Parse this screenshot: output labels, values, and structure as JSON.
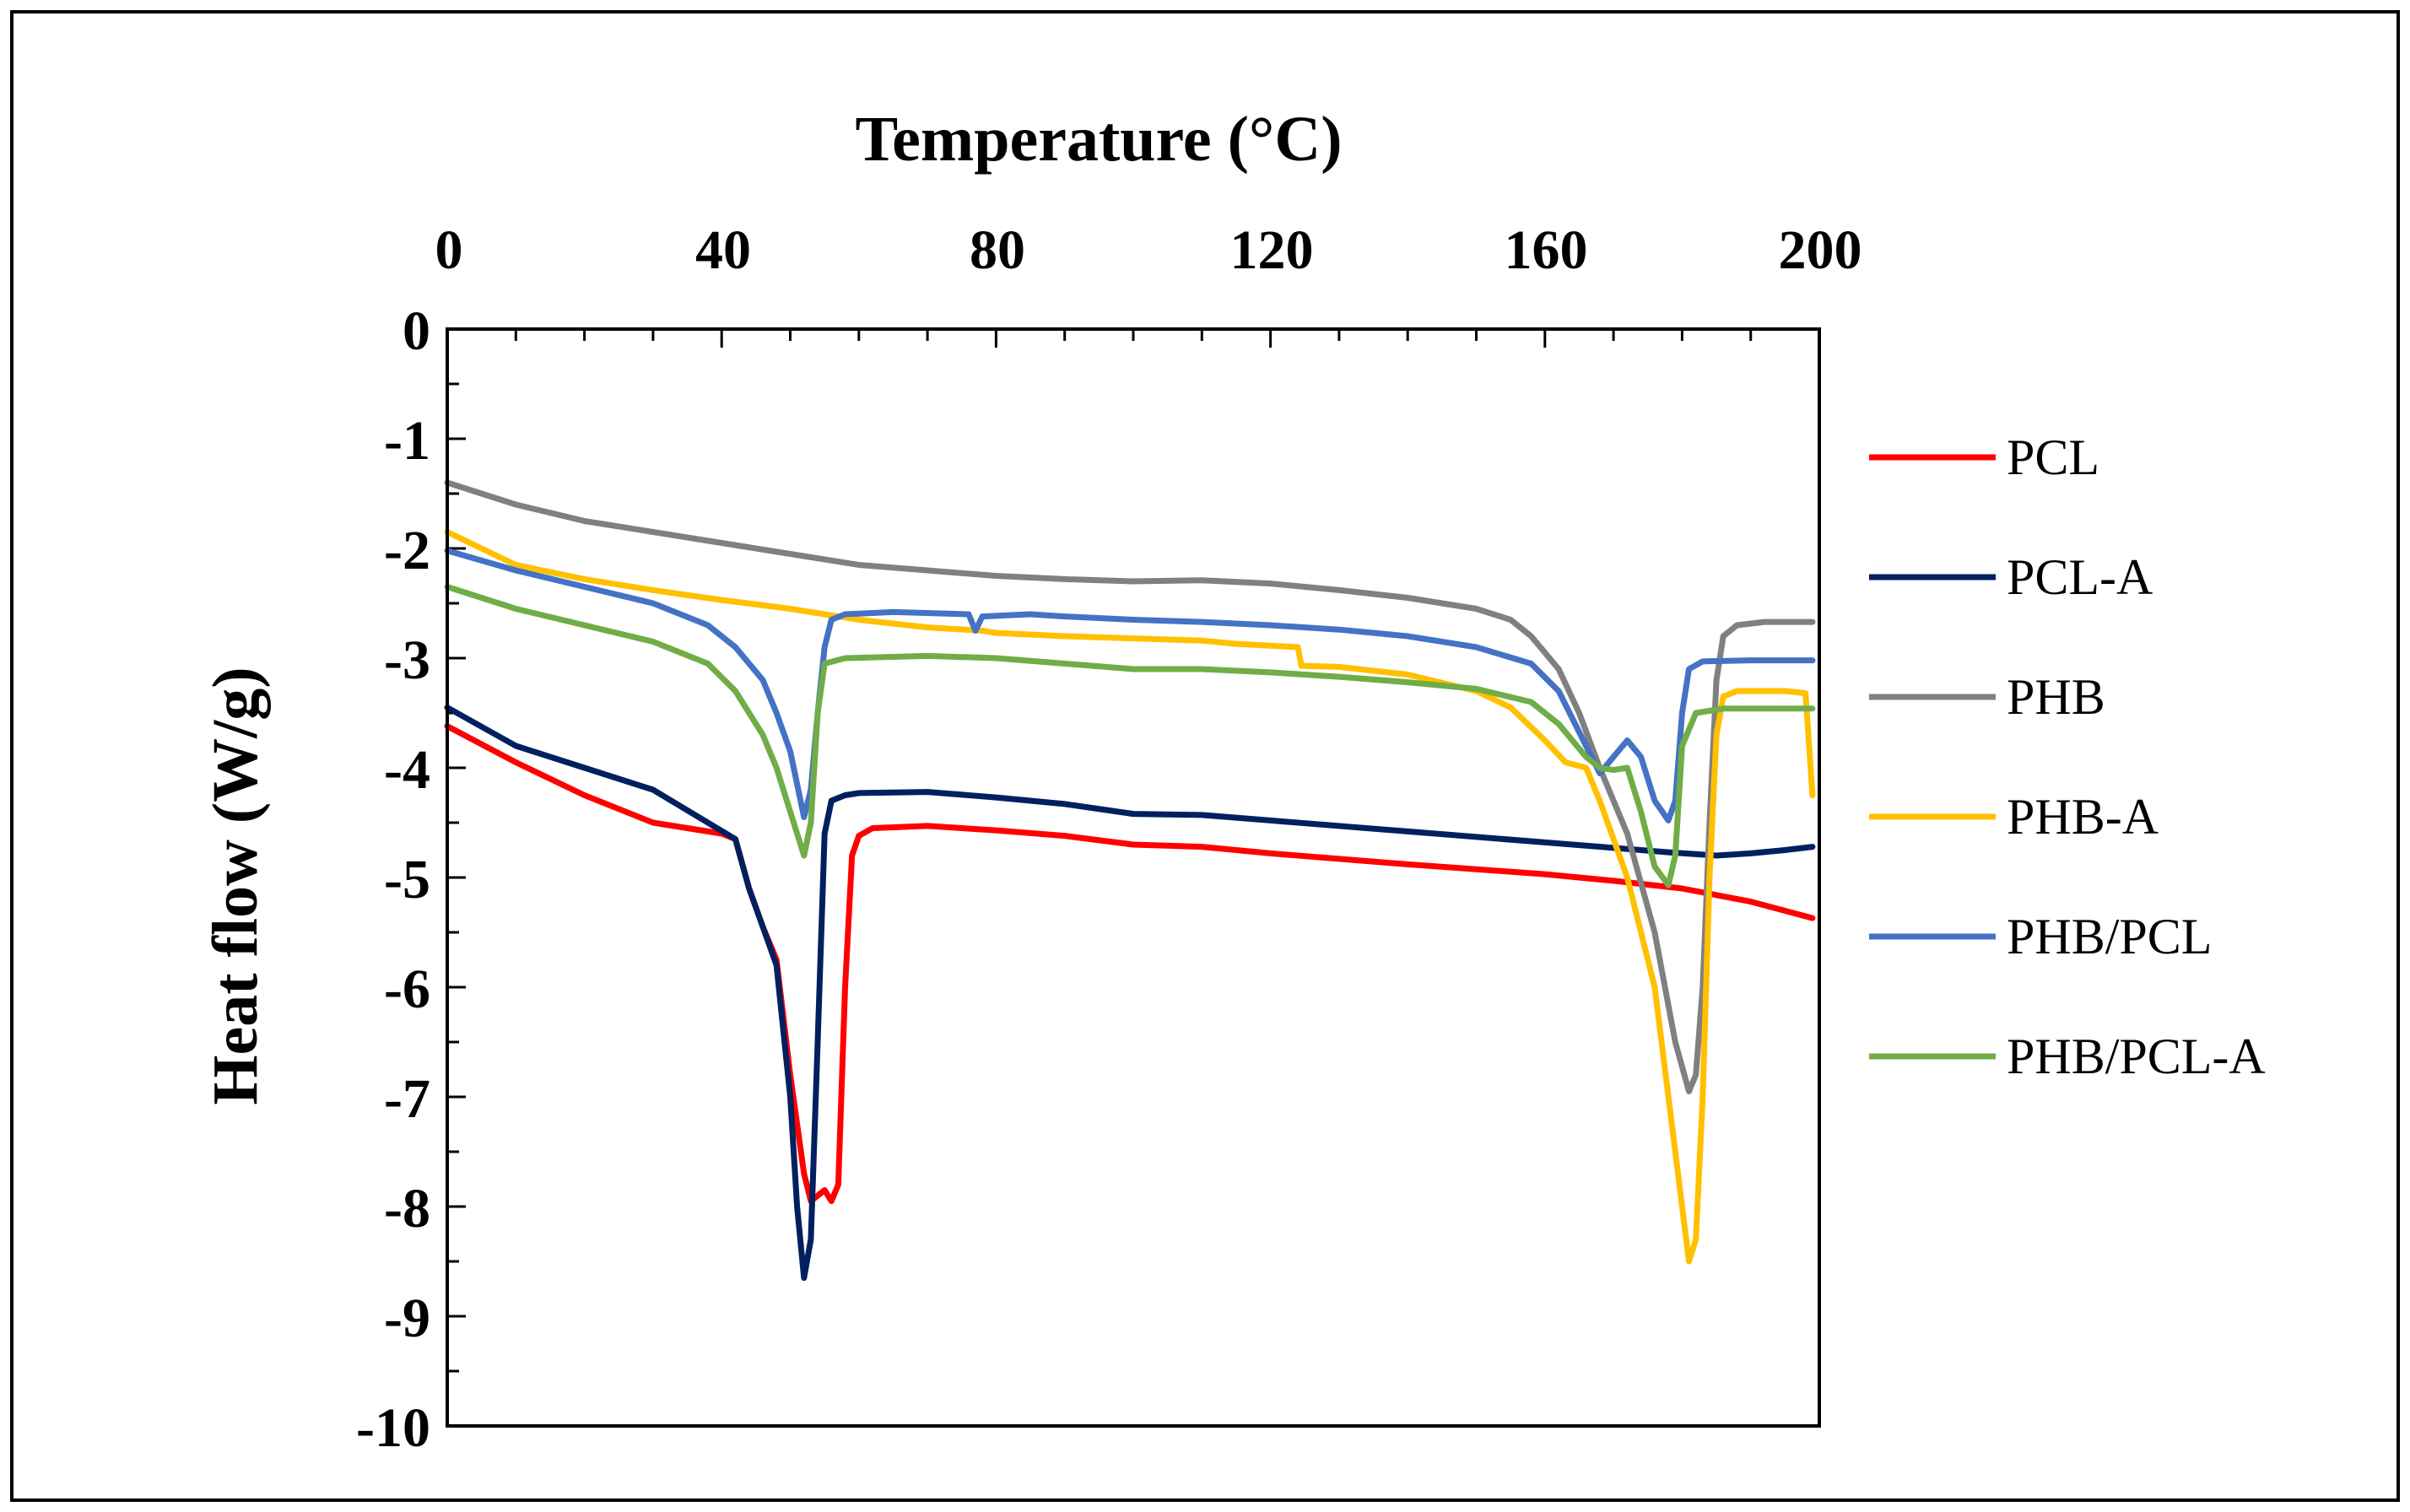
{
  "chart_data": {
    "type": "line",
    "title": "",
    "xlabel": "Temperature (°C)",
    "ylabel": "Heat flow (W/g)",
    "xlim": [
      0,
      200
    ],
    "ylim": [
      -10,
      0
    ],
    "x_ticks": [
      "0",
      "40",
      "80",
      "120",
      "160",
      "200"
    ],
    "y_ticks": [
      "0",
      "-1",
      "-2",
      "-3",
      "-4",
      "-5",
      "-6",
      "-7",
      "-8",
      "-9",
      "-10"
    ],
    "legend_position": "right",
    "series": [
      {
        "name": "PCL",
        "color": "#ff0000",
        "points": [
          [
            0,
            -3.62
          ],
          [
            10,
            -3.95
          ],
          [
            20,
            -4.25
          ],
          [
            30,
            -4.5
          ],
          [
            40,
            -4.6
          ],
          [
            42,
            -4.65
          ],
          [
            44,
            -5.1
          ],
          [
            46,
            -5.45
          ],
          [
            48,
            -5.75
          ],
          [
            50,
            -6.8
          ],
          [
            52,
            -7.7
          ],
          [
            53,
            -7.95
          ],
          [
            55,
            -7.85
          ],
          [
            56,
            -7.95
          ],
          [
            57,
            -7.8
          ],
          [
            58,
            -6.0
          ],
          [
            59,
            -4.8
          ],
          [
            60,
            -4.62
          ],
          [
            62,
            -4.55
          ],
          [
            70,
            -4.53
          ],
          [
            80,
            -4.57
          ],
          [
            90,
            -4.62
          ],
          [
            100,
            -4.7
          ],
          [
            110,
            -4.72
          ],
          [
            120,
            -4.78
          ],
          [
            140,
            -4.88
          ],
          [
            160,
            -4.97
          ],
          [
            170,
            -5.03
          ],
          [
            180,
            -5.1
          ],
          [
            190,
            -5.22
          ],
          [
            199,
            -5.37
          ]
        ]
      },
      {
        "name": "PCL-A",
        "color": "#002060",
        "points": [
          [
            0,
            -3.45
          ],
          [
            10,
            -3.8
          ],
          [
            20,
            -4.0
          ],
          [
            30,
            -4.2
          ],
          [
            38,
            -4.5
          ],
          [
            42,
            -4.65
          ],
          [
            44,
            -5.1
          ],
          [
            46,
            -5.45
          ],
          [
            48,
            -5.8
          ],
          [
            50,
            -7.0
          ],
          [
            51,
            -8.0
          ],
          [
            52,
            -8.65
          ],
          [
            53,
            -8.3
          ],
          [
            54,
            -6.5
          ],
          [
            55,
            -4.6
          ],
          [
            56,
            -4.3
          ],
          [
            58,
            -4.25
          ],
          [
            60,
            -4.23
          ],
          [
            70,
            -4.22
          ],
          [
            80,
            -4.27
          ],
          [
            90,
            -4.33
          ],
          [
            100,
            -4.42
          ],
          [
            110,
            -4.43
          ],
          [
            120,
            -4.48
          ],
          [
            140,
            -4.58
          ],
          [
            160,
            -4.68
          ],
          [
            170,
            -4.73
          ],
          [
            178,
            -4.77
          ],
          [
            185,
            -4.8
          ],
          [
            190,
            -4.78
          ],
          [
            195,
            -4.75
          ],
          [
            199,
            -4.72
          ]
        ]
      },
      {
        "name": "PHB",
        "color": "#808080",
        "points": [
          [
            0,
            -1.4
          ],
          [
            10,
            -1.6
          ],
          [
            20,
            -1.75
          ],
          [
            30,
            -1.85
          ],
          [
            40,
            -1.95
          ],
          [
            50,
            -2.05
          ],
          [
            60,
            -2.15
          ],
          [
            70,
            -2.2
          ],
          [
            80,
            -2.25
          ],
          [
            90,
            -2.28
          ],
          [
            100,
            -2.3
          ],
          [
            110,
            -2.29
          ],
          [
            120,
            -2.32
          ],
          [
            130,
            -2.38
          ],
          [
            140,
            -2.45
          ],
          [
            150,
            -2.55
          ],
          [
            155,
            -2.65
          ],
          [
            158,
            -2.8
          ],
          [
            162,
            -3.1
          ],
          [
            165,
            -3.5
          ],
          [
            168,
            -4.0
          ],
          [
            172,
            -4.6
          ],
          [
            176,
            -5.5
          ],
          [
            179,
            -6.5
          ],
          [
            181,
            -6.95
          ],
          [
            182,
            -6.8
          ],
          [
            183,
            -6.0
          ],
          [
            184,
            -4.5
          ],
          [
            185,
            -3.2
          ],
          [
            186,
            -2.8
          ],
          [
            188,
            -2.7
          ],
          [
            192,
            -2.67
          ],
          [
            199,
            -2.67
          ]
        ]
      },
      {
        "name": "PHB-A",
        "color": "#ffc000",
        "points": [
          [
            0,
            -1.85
          ],
          [
            10,
            -2.15
          ],
          [
            20,
            -2.28
          ],
          [
            30,
            -2.38
          ],
          [
            40,
            -2.47
          ],
          [
            50,
            -2.55
          ],
          [
            60,
            -2.65
          ],
          [
            70,
            -2.72
          ],
          [
            78,
            -2.75
          ],
          [
            80,
            -2.77
          ],
          [
            90,
            -2.8
          ],
          [
            100,
            -2.82
          ],
          [
            110,
            -2.84
          ],
          [
            115,
            -2.87
          ],
          [
            124,
            -2.9
          ],
          [
            124.5,
            -3.07
          ],
          [
            130,
            -3.08
          ],
          [
            140,
            -3.15
          ],
          [
            150,
            -3.3
          ],
          [
            155,
            -3.45
          ],
          [
            160,
            -3.75
          ],
          [
            163,
            -3.95
          ],
          [
            166,
            -4.0
          ],
          [
            168,
            -4.3
          ],
          [
            172,
            -5.0
          ],
          [
            176,
            -6.0
          ],
          [
            179,
            -7.5
          ],
          [
            181,
            -8.5
          ],
          [
            182,
            -8.3
          ],
          [
            183,
            -7.0
          ],
          [
            184,
            -5.0
          ],
          [
            185,
            -3.7
          ],
          [
            186,
            -3.35
          ],
          [
            188,
            -3.3
          ],
          [
            195,
            -3.3
          ],
          [
            198,
            -3.32
          ],
          [
            199,
            -4.25
          ]
        ]
      },
      {
        "name": "PHB/PCL",
        "color": "#4472c4",
        "points": [
          [
            0,
            -2.02
          ],
          [
            10,
            -2.2
          ],
          [
            20,
            -2.35
          ],
          [
            30,
            -2.5
          ],
          [
            38,
            -2.7
          ],
          [
            42,
            -2.9
          ],
          [
            46,
            -3.2
          ],
          [
            48,
            -3.5
          ],
          [
            50,
            -3.85
          ],
          [
            52,
            -4.45
          ],
          [
            53,
            -4.2
          ],
          [
            54,
            -3.5
          ],
          [
            55,
            -2.9
          ],
          [
            56,
            -2.65
          ],
          [
            58,
            -2.6
          ],
          [
            65,
            -2.58
          ],
          [
            76,
            -2.6
          ],
          [
            77,
            -2.75
          ],
          [
            78,
            -2.62
          ],
          [
            85,
            -2.6
          ],
          [
            90,
            -2.62
          ],
          [
            100,
            -2.65
          ],
          [
            110,
            -2.67
          ],
          [
            120,
            -2.7
          ],
          [
            130,
            -2.74
          ],
          [
            140,
            -2.8
          ],
          [
            150,
            -2.9
          ],
          [
            158,
            -3.05
          ],
          [
            162,
            -3.3
          ],
          [
            166,
            -3.8
          ],
          [
            168,
            -4.05
          ],
          [
            170,
            -3.9
          ],
          [
            172,
            -3.75
          ],
          [
            174,
            -3.9
          ],
          [
            176,
            -4.3
          ],
          [
            178,
            -4.48
          ],
          [
            179,
            -4.3
          ],
          [
            180,
            -3.5
          ],
          [
            181,
            -3.1
          ],
          [
            183,
            -3.03
          ],
          [
            190,
            -3.02
          ],
          [
            199,
            -3.02
          ]
        ]
      },
      {
        "name": "PHB/PCL-A",
        "color": "#70ad47",
        "points": [
          [
            0,
            -2.35
          ],
          [
            10,
            -2.55
          ],
          [
            20,
            -2.7
          ],
          [
            30,
            -2.85
          ],
          [
            38,
            -3.05
          ],
          [
            42,
            -3.3
          ],
          [
            46,
            -3.7
          ],
          [
            48,
            -4.0
          ],
          [
            50,
            -4.4
          ],
          [
            52,
            -4.8
          ],
          [
            53,
            -4.5
          ],
          [
            54,
            -3.5
          ],
          [
            55,
            -3.05
          ],
          [
            58,
            -3.0
          ],
          [
            70,
            -2.98
          ],
          [
            80,
            -3.0
          ],
          [
            90,
            -3.05
          ],
          [
            100,
            -3.1
          ],
          [
            110,
            -3.1
          ],
          [
            120,
            -3.13
          ],
          [
            130,
            -3.17
          ],
          [
            140,
            -3.22
          ],
          [
            150,
            -3.28
          ],
          [
            158,
            -3.4
          ],
          [
            162,
            -3.6
          ],
          [
            166,
            -3.9
          ],
          [
            168,
            -4.0
          ],
          [
            170,
            -4.02
          ],
          [
            172,
            -4.0
          ],
          [
            174,
            -4.4
          ],
          [
            176,
            -4.9
          ],
          [
            178,
            -5.07
          ],
          [
            179,
            -4.8
          ],
          [
            180,
            -3.8
          ],
          [
            182,
            -3.5
          ],
          [
            186,
            -3.46
          ],
          [
            199,
            -3.46
          ]
        ]
      }
    ]
  }
}
